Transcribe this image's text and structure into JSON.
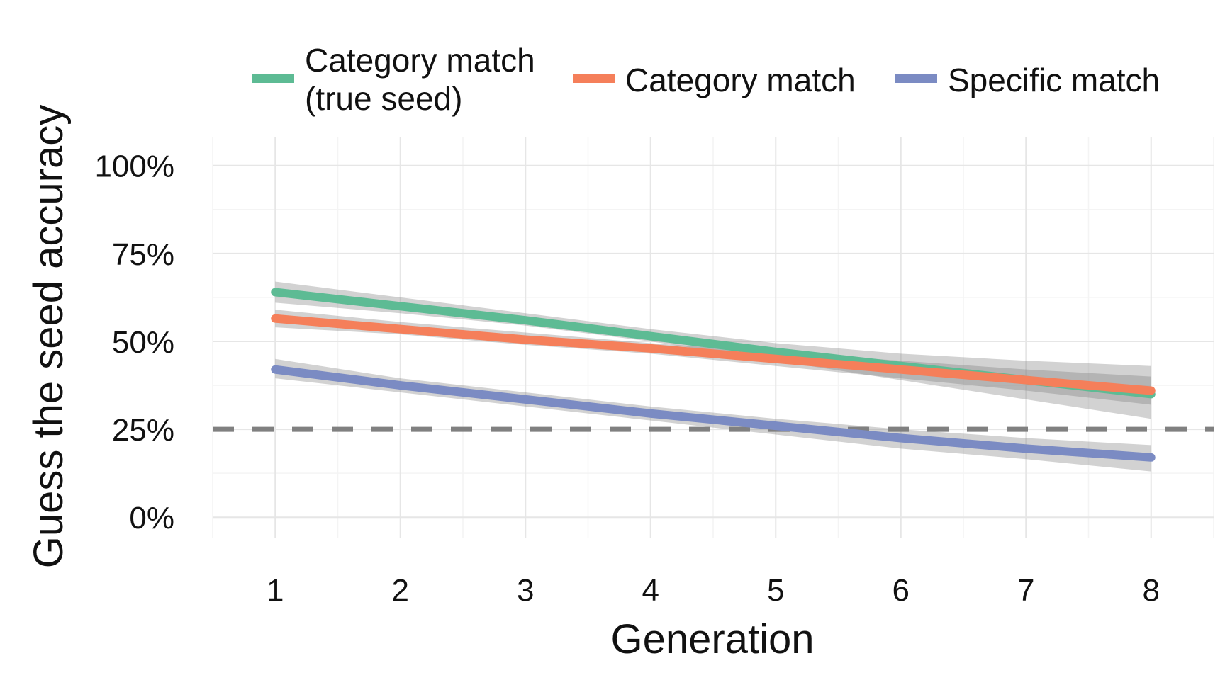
{
  "chart_data": {
    "type": "line",
    "xlabel": "Generation",
    "ylabel": "Guess the seed accuracy",
    "x": [
      1,
      2,
      3,
      4,
      5,
      6,
      7,
      8
    ],
    "x_ticks": [
      "1",
      "2",
      "3",
      "4",
      "5",
      "6",
      "7",
      "8"
    ],
    "xlim": [
      0.5,
      8.5
    ],
    "ylim": [
      -0.06,
      1.08
    ],
    "y_ticks": [
      0,
      0.25,
      0.5,
      0.75,
      1.0
    ],
    "y_tick_labels": [
      "0%",
      "25%",
      "50%",
      "75%",
      "100%"
    ],
    "grid": true,
    "legend_position": "top",
    "reference_line": {
      "y": 0.25,
      "style": "dashed",
      "color": "#808080"
    },
    "series": [
      {
        "name": "Category match\n(true seed)",
        "legend_lines": [
          "Category match",
          "(true seed)"
        ],
        "color": "#5dbb94",
        "values": [
          0.64,
          0.6,
          0.56,
          0.515,
          0.47,
          0.43,
          0.39,
          0.35
        ],
        "ci_lower": [
          0.61,
          0.58,
          0.545,
          0.5,
          0.445,
          0.39,
          0.335,
          0.28
        ],
        "ci_upper": [
          0.67,
          0.625,
          0.58,
          0.535,
          0.495,
          0.465,
          0.445,
          0.43
        ]
      },
      {
        "name": "Category match",
        "legend_lines": [
          "Category match"
        ],
        "color": "#f57f5a",
        "values": [
          0.565,
          0.535,
          0.505,
          0.48,
          0.45,
          0.42,
          0.39,
          0.36
        ],
        "ci_lower": [
          0.54,
          0.52,
          0.49,
          0.465,
          0.43,
          0.395,
          0.36,
          0.32
        ],
        "ci_upper": [
          0.59,
          0.555,
          0.525,
          0.495,
          0.47,
          0.445,
          0.42,
          0.4
        ]
      },
      {
        "name": "Specific match",
        "legend_lines": [
          "Specific match"
        ],
        "color": "#7b8bc3",
        "values": [
          0.42,
          0.375,
          0.335,
          0.295,
          0.26,
          0.225,
          0.195,
          0.17
        ],
        "ci_lower": [
          0.395,
          0.355,
          0.315,
          0.275,
          0.235,
          0.195,
          0.165,
          0.13
        ],
        "ci_upper": [
          0.45,
          0.395,
          0.355,
          0.315,
          0.28,
          0.25,
          0.225,
          0.205
        ]
      }
    ]
  }
}
